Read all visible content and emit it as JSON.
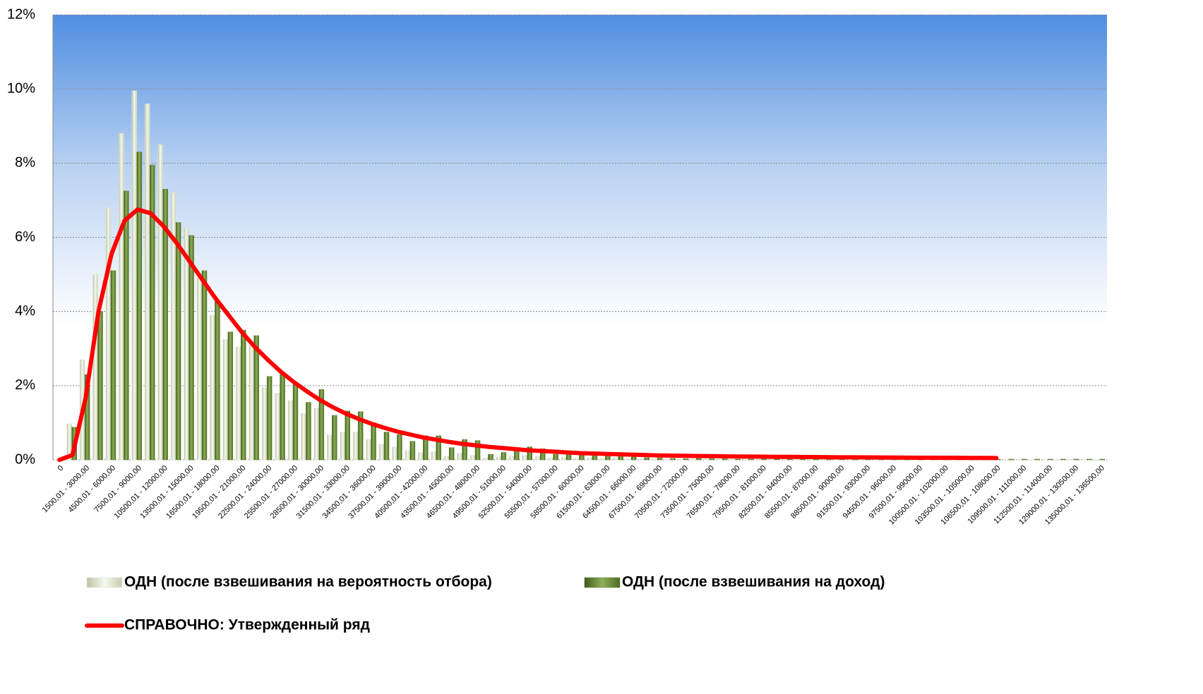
{
  "chart_data": {
    "type": "bar",
    "categories": [
      "0",
      null,
      "1500,01 - 3000,00",
      null,
      "4500,01 - 6000,00",
      null,
      "7500,01 - 9000,00",
      null,
      "10500,01 - 12000,00",
      null,
      "13500,01 - 15000,00",
      null,
      "16500,01 - 18000,00",
      null,
      "19500,01 - 21000,00",
      null,
      "22500,01 - 24000,00",
      null,
      "25500,01 - 27000,00",
      null,
      "28500,01 - 30000,00",
      null,
      "31500,01 - 33000,00",
      null,
      "34500,01 - 36000,00",
      null,
      "37500,01 - 39000,00",
      null,
      "40500,01 - 42000,00",
      null,
      "43500,01 - 45000,00",
      null,
      "46500,01 - 48000,00",
      null,
      "49500,01 - 51000,00",
      null,
      "52500,01 - 54000,00",
      null,
      "55500,01 - 57000,00",
      null,
      "58500,01 - 60000,00",
      null,
      "61500,01 - 63000,00",
      null,
      "64500,01 - 66000,00",
      null,
      "67500,01 - 69000,00",
      null,
      "70500,01 - 72000,00",
      null,
      "73500,01 - 75000,00",
      null,
      "76500,01 - 78000,00",
      null,
      "79500,01 - 81000,00",
      null,
      "82500,01 - 84000,00",
      null,
      "85500,01 - 87000,00",
      null,
      "88500,01 - 90000,00",
      null,
      "91500,01 - 93000,00",
      null,
      "94500,01 - 96000,00",
      null,
      "97500,01 - 99000,00",
      null,
      "100500,01 - 102000,00",
      null,
      "103500,01 - 105000,00",
      null,
      "106500,01 - 108000,00",
      null,
      "109500,01 - 111000,00",
      null,
      "112500,01 - 114000,00",
      null,
      "129000,01 - 130500,00",
      null,
      "135000,01 - 136500,00"
    ],
    "series": [
      {
        "name": "ОДН (после взвешивания на вероятность отбора)",
        "type": "bar",
        "color": "#dfe6d2",
        "values": [
          0,
          0.97,
          2.7,
          5.0,
          6.8,
          8.8,
          9.95,
          9.6,
          8.5,
          7.2,
          6.25,
          4.9,
          3.9,
          3.25,
          3.05,
          3.1,
          1.95,
          1.8,
          1.6,
          1.25,
          1.4,
          0.68,
          0.75,
          0.75,
          0.55,
          0.42,
          0.35,
          0.25,
          0.2,
          0.22,
          0.1,
          0.18,
          0.12,
          0.05,
          0.08,
          0.1,
          0.12,
          0.1,
          0.05,
          0.08,
          0.05,
          0.06,
          0.05,
          0.06,
          0.04,
          0.03,
          0.03,
          0.02,
          0.02,
          0.02,
          0.02,
          0.02,
          0.02,
          0.02,
          0.02,
          0.02,
          0.02,
          0.02,
          0.02,
          0.02,
          0.02,
          0.01,
          0.01,
          0.01,
          0.01,
          0.01,
          0.01,
          0.01,
          0.01,
          0.01,
          0.01,
          0.01,
          0.01,
          0.01,
          0.01,
          0.01,
          0.01,
          0.01,
          0.01,
          0.01,
          0.01
        ]
      },
      {
        "name": "ОДН (после взвешивания на доход)",
        "type": "bar",
        "color": "#5f7f2e",
        "values": [
          0,
          0.88,
          2.3,
          4.0,
          5.1,
          7.25,
          8.3,
          7.95,
          7.3,
          6.4,
          6.05,
          5.1,
          4.3,
          3.45,
          3.5,
          3.35,
          2.25,
          2.3,
          2.05,
          1.55,
          1.9,
          1.2,
          1.32,
          1.3,
          1.0,
          0.75,
          0.68,
          0.5,
          0.65,
          0.65,
          0.33,
          0.55,
          0.52,
          0.15,
          0.2,
          0.28,
          0.35,
          0.3,
          0.15,
          0.25,
          0.12,
          0.15,
          0.15,
          0.17,
          0.08,
          0.06,
          0.05,
          0.04,
          0.03,
          0.04,
          0.03,
          0.03,
          0.02,
          0.02,
          0.02,
          0.02,
          0.02,
          0.02,
          0.02,
          0.02,
          0.02,
          0.02,
          0.02,
          0.02,
          0.02,
          0.02,
          0.02,
          0.02,
          0.02,
          0.02,
          0.02,
          0.02,
          0.02,
          0.02,
          0.02,
          0.02,
          0.02,
          0.02,
          0.02,
          0.02,
          0.02
        ]
      },
      {
        "name": "СПРАВОЧНО: Утвержденный ряд",
        "type": "line",
        "color": "#ff0000",
        "values": [
          0,
          0.13,
          1.65,
          4.0,
          5.55,
          6.45,
          6.75,
          6.65,
          6.3,
          5.85,
          5.35,
          4.85,
          4.35,
          3.9,
          3.45,
          3.05,
          2.7,
          2.38,
          2.1,
          1.85,
          1.62,
          1.42,
          1.25,
          1.1,
          0.97,
          0.86,
          0.76,
          0.68,
          0.6,
          0.54,
          0.48,
          0.43,
          0.39,
          0.35,
          0.32,
          0.29,
          0.26,
          0.24,
          0.22,
          0.2,
          0.18,
          0.17,
          0.16,
          0.15,
          0.14,
          0.13,
          0.12,
          0.115,
          0.11,
          0.105,
          0.1,
          0.095,
          0.09,
          0.088,
          0.085,
          0.082,
          0.08,
          0.078,
          0.075,
          0.072,
          0.07,
          0.068,
          0.066,
          0.064,
          0.062,
          0.06,
          0.058,
          0.056,
          0.055,
          0.054,
          0.053,
          0.052,
          0.05,
          null,
          null,
          null,
          null,
          null,
          null,
          null,
          null
        ]
      }
    ],
    "ylim": [
      0,
      12
    ],
    "yticks": [
      {
        "value": 0,
        "label": "0%"
      },
      {
        "value": 2,
        "label": "2%"
      },
      {
        "value": 4,
        "label": "4%"
      },
      {
        "value": 6,
        "label": "6%"
      },
      {
        "value": 8,
        "label": "8%"
      },
      {
        "value": 10,
        "label": "10%"
      },
      {
        "value": 12,
        "label": "12%"
      }
    ],
    "grid": true
  }
}
